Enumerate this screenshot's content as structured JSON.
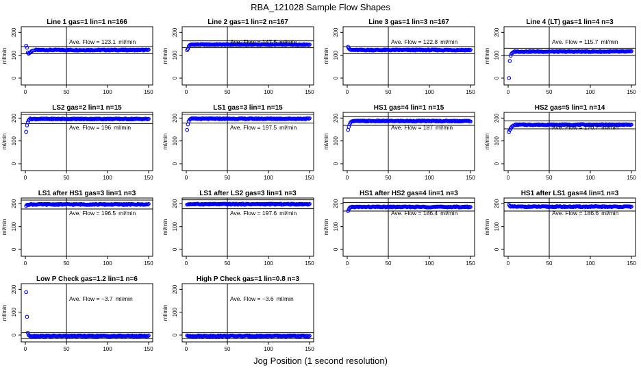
{
  "figure": {
    "title": "RBA_121028  Sample Flow Shapes",
    "xlabel": "Jog Position (1 second resolution)"
  },
  "colors": {
    "points": "#0000ff",
    "frame": "#000000"
  },
  "chart_data": [
    {
      "type": "scatter",
      "title": "Line 1 gas=1 lin=1 n=166",
      "ylabel": "ml/min",
      "ann_label": "Ave. Flow =",
      "ann_value": "123.1",
      "ann_unit": "ml/min",
      "mean": 123.1,
      "hlines": [
        107,
        138
      ],
      "vline": 50,
      "xlim": [
        -5,
        155
      ],
      "ylim": [
        -30,
        225
      ],
      "xticks": [
        0,
        50,
        100,
        150
      ],
      "yticks": [
        0,
        100,
        200
      ],
      "points": [
        [
          1,
          142
        ],
        [
          2,
          133
        ],
        [
          3,
          112
        ],
        [
          4,
          107
        ],
        [
          5,
          110
        ],
        [
          6,
          113
        ],
        [
          7,
          116
        ],
        [
          8,
          119
        ],
        [
          10,
          121
        ],
        [
          12,
          122
        ]
      ],
      "steady": 123
    },
    {
      "type": "scatter",
      "title": "Line 2 gas=1 lin=2 n=167",
      "ylabel": "ml/min",
      "ann_label": "Ave. Flow =",
      "ann_value": "147.5",
      "ann_unit": "ml/min",
      "mean": 147.5,
      "hlines": [
        133,
        163
      ],
      "vline": 50,
      "xlim": [
        -5,
        155
      ],
      "ylim": [
        -30,
        225
      ],
      "xticks": [
        0,
        50,
        100,
        150
      ],
      "yticks": [
        0,
        100,
        200
      ],
      "points": [
        [
          1,
          122
        ],
        [
          2,
          128
        ],
        [
          3,
          138
        ],
        [
          4,
          144
        ],
        [
          5,
          146
        ],
        [
          6,
          147
        ]
      ],
      "steady": 147
    },
    {
      "type": "scatter",
      "title": "Line 3 gas=1 lin=3 n=167",
      "ylabel": "ml/min",
      "ann_label": "Ave. Flow =",
      "ann_value": "122.8",
      "ann_unit": "ml/min",
      "mean": 122.8,
      "hlines": [
        107,
        138
      ],
      "vline": 50,
      "xlim": [
        -5,
        155
      ],
      "ylim": [
        -30,
        225
      ],
      "xticks": [
        0,
        50,
        100,
        150
      ],
      "yticks": [
        0,
        100,
        200
      ],
      "points": [
        [
          1,
          137
        ],
        [
          2,
          130
        ],
        [
          3,
          126
        ],
        [
          4,
          124
        ]
      ],
      "steady": 123
    },
    {
      "type": "scatter",
      "title": "Line 4 (LT) gas=1 lin=4 n=3",
      "ylabel": "ml/min",
      "ann_label": "Ave. Flow =",
      "ann_value": "115.7",
      "ann_unit": "ml/min",
      "mean": 115.7,
      "hlines": [
        100,
        131
      ],
      "vline": 50,
      "xlim": [
        -5,
        155
      ],
      "ylim": [
        -30,
        225
      ],
      "xticks": [
        0,
        50,
        100,
        150
      ],
      "yticks": [
        0,
        100,
        200
      ],
      "points": [
        [
          1,
          0
        ],
        [
          2,
          75
        ],
        [
          3,
          98
        ],
        [
          4,
          106
        ],
        [
          5,
          110
        ],
        [
          6,
          113
        ]
      ],
      "steady": 116
    },
    {
      "type": "scatter",
      "title": "LS2 gas=2 lin=1 n=15",
      "ylabel": "ml/min",
      "ann_label": "Ave. Flow =",
      "ann_value": "196",
      "ann_unit": "ml/min",
      "mean": 196,
      "hlines": [
        176,
        216
      ],
      "vline": 50,
      "xlim": [
        -5,
        155
      ],
      "ylim": [
        -30,
        225
      ],
      "xticks": [
        0,
        50,
        100,
        150
      ],
      "yticks": [
        0,
        100,
        200
      ],
      "points": [
        [
          1,
          140
        ],
        [
          2,
          168
        ],
        [
          3,
          182
        ],
        [
          4,
          190
        ],
        [
          5,
          194
        ]
      ],
      "steady": 196
    },
    {
      "type": "scatter",
      "title": "LS1 gas=3 lin=1 n=15",
      "ylabel": "ml/min",
      "ann_label": "Ave. Flow =",
      "ann_value": "197.5",
      "ann_unit": "ml/min",
      "mean": 197.5,
      "hlines": [
        178,
        217
      ],
      "vline": 50,
      "xlim": [
        -5,
        155
      ],
      "ylim": [
        -30,
        225
      ],
      "xticks": [
        0,
        50,
        100,
        150
      ],
      "yticks": [
        0,
        100,
        200
      ],
      "points": [
        [
          1,
          148
        ],
        [
          2,
          172
        ],
        [
          3,
          186
        ],
        [
          4,
          193
        ],
        [
          5,
          196
        ]
      ],
      "steady": 197
    },
    {
      "type": "scatter",
      "title": "HS1 gas=4 lin=1 n=15",
      "ylabel": "ml/min",
      "ann_label": "Ave. Flow =",
      "ann_value": "187",
      "ann_unit": "ml/min",
      "mean": 187,
      "hlines": [
        168,
        206
      ],
      "vline": 50,
      "xlim": [
        -5,
        155
      ],
      "ylim": [
        -30,
        225
      ],
      "xticks": [
        0,
        50,
        100,
        150
      ],
      "yticks": [
        0,
        100,
        200
      ],
      "points": [
        [
          1,
          148
        ],
        [
          2,
          162
        ],
        [
          3,
          172
        ],
        [
          4,
          180
        ],
        [
          5,
          184
        ]
      ],
      "steady": 187
    },
    {
      "type": "scatter",
      "title": "HS2 gas=5 lin=1 n=14",
      "ylabel": "ml/min",
      "ann_label": "Ave. Flow =",
      "ann_value": "170.7",
      "ann_unit": "ml/min",
      "mean": 170.7,
      "hlines": [
        153,
        188
      ],
      "vline": 50,
      "xlim": [
        -5,
        155
      ],
      "ylim": [
        -30,
        225
      ],
      "xticks": [
        0,
        50,
        100,
        150
      ],
      "yticks": [
        0,
        100,
        200
      ],
      "points": [
        [
          1,
          140
        ],
        [
          2,
          148
        ],
        [
          3,
          155
        ],
        [
          4,
          160
        ],
        [
          5,
          164
        ],
        [
          6,
          167
        ],
        [
          8,
          169
        ]
      ],
      "steady": 171
    },
    {
      "type": "scatter",
      "title": "LS1 after HS1 gas=3 lin=1 n=3",
      "ylabel": "ml/min",
      "ann_label": "Ave. Flow =",
      "ann_value": "196.5",
      "ann_unit": "ml/min",
      "mean": 196.5,
      "hlines": [
        177,
        216
      ],
      "vline": 50,
      "xlim": [
        -5,
        155
      ],
      "ylim": [
        -30,
        225
      ],
      "xticks": [
        0,
        50,
        100,
        150
      ],
      "yticks": [
        0,
        100,
        200
      ],
      "points": [
        [
          1,
          190
        ],
        [
          2,
          195
        ]
      ],
      "steady": 197
    },
    {
      "type": "scatter",
      "title": "LS1 after LS2 gas=3 lin=1 n=3",
      "ylabel": "ml/min",
      "ann_label": "Ave. Flow =",
      "ann_value": "197.6",
      "ann_unit": "ml/min",
      "mean": 197.6,
      "hlines": [
        178,
        217
      ],
      "vline": 50,
      "xlim": [
        -5,
        155
      ],
      "ylim": [
        -30,
        225
      ],
      "xticks": [
        0,
        50,
        100,
        150
      ],
      "yticks": [
        0,
        100,
        200
      ],
      "points": [
        [
          1,
          196
        ],
        [
          2,
          197
        ]
      ],
      "steady": 198
    },
    {
      "type": "scatter",
      "title": "HS1 after HS2 gas=4 lin=1 n=3",
      "ylabel": "ml/min",
      "ann_label": "Ave. Flow =",
      "ann_value": "186.4",
      "ann_unit": "ml/min",
      "mean": 186.4,
      "hlines": [
        168,
        205
      ],
      "vline": 50,
      "xlim": [
        -5,
        155
      ],
      "ylim": [
        -30,
        225
      ],
      "xticks": [
        0,
        50,
        100,
        150
      ],
      "yticks": [
        0,
        100,
        200
      ],
      "points": [
        [
          1,
          168
        ],
        [
          2,
          176
        ],
        [
          3,
          182
        ]
      ],
      "steady": 186
    },
    {
      "type": "scatter",
      "title": "HS1 after LS1 gas=4 lin=1 n=3",
      "ylabel": "ml/min",
      "ann_label": "Ave. Flow =",
      "ann_value": "186.6",
      "ann_unit": "ml/min",
      "mean": 186.6,
      "hlines": [
        168,
        205
      ],
      "vline": 50,
      "xlim": [
        -5,
        155
      ],
      "ylim": [
        -30,
        225
      ],
      "xticks": [
        0,
        50,
        100,
        150
      ],
      "yticks": [
        0,
        100,
        200
      ],
      "points": [
        [
          1,
          195
        ],
        [
          2,
          190
        ],
        [
          3,
          187
        ]
      ],
      "steady": 187
    },
    {
      "type": "scatter",
      "title": "Low P Check gas=1.2 lin=1 n=6",
      "ylabel": "ml/min",
      "ann_label": "Ave. Flow =",
      "ann_value": "−3.7",
      "ann_unit": "ml/min",
      "mean": -3.7,
      "hlines": [
        -16,
        10
      ],
      "vline": 50,
      "xlim": [
        -5,
        155
      ],
      "ylim": [
        -30,
        225
      ],
      "xticks": [
        0,
        50,
        100,
        150
      ],
      "yticks": [
        0,
        100,
        200
      ],
      "points": [
        [
          1,
          188
        ],
        [
          2,
          80
        ],
        [
          3,
          10
        ],
        [
          4,
          0
        ],
        [
          5,
          -3
        ]
      ],
      "steady": -4
    },
    {
      "type": "scatter",
      "title": "High P Check gas=1 lin=0.8 n=3",
      "ylabel": "ml/min",
      "ann_label": "Ave. Flow =",
      "ann_value": "−3.6",
      "ann_unit": "ml/min",
      "mean": -3.6,
      "hlines": [
        -16,
        10
      ],
      "vline": 50,
      "xlim": [
        -5,
        155
      ],
      "ylim": [
        -30,
        225
      ],
      "xticks": [
        0,
        50,
        100,
        150
      ],
      "yticks": [
        0,
        100,
        200
      ],
      "points": [
        [
          1,
          -2
        ],
        [
          2,
          -4
        ]
      ],
      "steady": -4
    }
  ]
}
